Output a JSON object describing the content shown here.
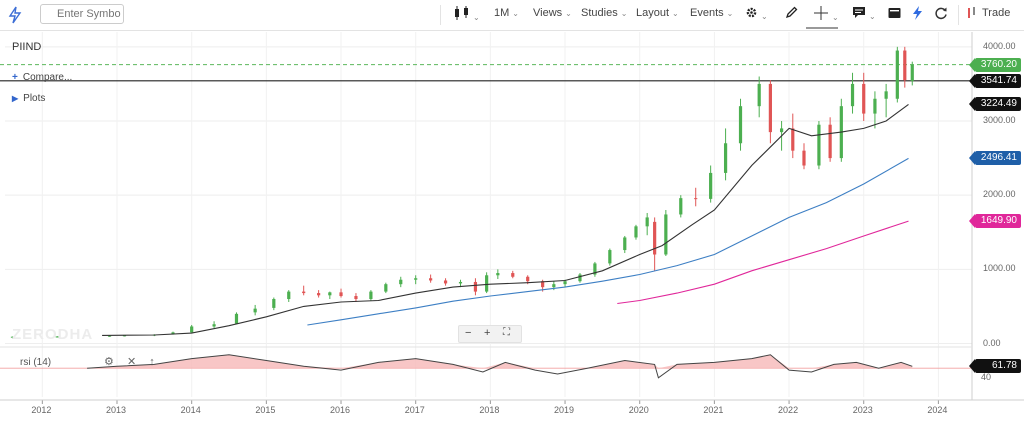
{
  "toolbar": {
    "search_placeholder": "Enter Symbol",
    "interval": "1M",
    "views": "Views",
    "studies": "Studies",
    "layout": "Layout",
    "events": "Events",
    "trade": "Trade"
  },
  "symbol": "PIIND",
  "compare_label": "Compare...",
  "plots_label": "Plots",
  "watermark": "ZERODHA",
  "colors": {
    "up": "#4caf50",
    "down": "#e05555",
    "ema_short": "#333333",
    "ema_mid": "#3d7fc4",
    "ema_long": "#e0279a",
    "rsi": "#444444"
  },
  "chart_data": {
    "type": "candlestick",
    "title": "PIIND",
    "interval": "1M",
    "y_axis": {
      "ticks": [
        0,
        1000,
        2000,
        3000,
        4000
      ],
      "tick_labels": [
        "0.00",
        "1000.00",
        "2000.00",
        "3000.00",
        "4000.00"
      ],
      "range": [
        -20,
        4200
      ]
    },
    "x_axis": {
      "labels": [
        "2012",
        "2013",
        "2014",
        "2015",
        "2016",
        "2017",
        "2018",
        "2019",
        "2020",
        "2021",
        "2022",
        "2023",
        "2024"
      ],
      "range": [
        2011.5,
        2024.45
      ]
    },
    "candles": [
      [
        2011.6,
        85,
        95,
        70,
        92
      ],
      [
        2012.2,
        90,
        100,
        80,
        95
      ],
      [
        2012.9,
        100,
        110,
        90,
        105
      ],
      [
        2013.1,
        105,
        115,
        95,
        110
      ],
      [
        2013.5,
        110,
        125,
        100,
        120
      ],
      [
        2013.75,
        125,
        160,
        120,
        150
      ],
      [
        2014.0,
        150,
        250,
        145,
        230
      ],
      [
        2014.3,
        230,
        300,
        210,
        260
      ],
      [
        2014.6,
        270,
        420,
        260,
        400
      ],
      [
        2014.85,
        420,
        520,
        380,
        470
      ],
      [
        2015.1,
        480,
        620,
        450,
        600
      ],
      [
        2015.3,
        600,
        720,
        560,
        700
      ],
      [
        2015.5,
        700,
        780,
        650,
        680
      ],
      [
        2015.7,
        680,
        720,
        620,
        650
      ],
      [
        2015.85,
        650,
        700,
        600,
        690
      ],
      [
        2016.0,
        690,
        740,
        620,
        640
      ],
      [
        2016.2,
        640,
        680,
        560,
        600
      ],
      [
        2016.4,
        600,
        720,
        580,
        700
      ],
      [
        2016.6,
        700,
        820,
        680,
        800
      ],
      [
        2016.8,
        800,
        900,
        760,
        860
      ],
      [
        2017.0,
        860,
        920,
        800,
        880
      ],
      [
        2017.2,
        880,
        930,
        820,
        850
      ],
      [
        2017.4,
        850,
        880,
        780,
        810
      ],
      [
        2017.6,
        810,
        860,
        760,
        830
      ],
      [
        2017.8,
        830,
        880,
        650,
        700
      ],
      [
        2017.95,
        700,
        960,
        680,
        920
      ],
      [
        2018.1,
        920,
        1000,
        870,
        950
      ],
      [
        2018.3,
        950,
        980,
        880,
        900
      ],
      [
        2018.5,
        900,
        920,
        800,
        840
      ],
      [
        2018.7,
        840,
        860,
        700,
        760
      ],
      [
        2018.85,
        760,
        840,
        720,
        800
      ],
      [
        2019.0,
        800,
        860,
        760,
        840
      ],
      [
        2019.2,
        840,
        950,
        820,
        930
      ],
      [
        2019.4,
        930,
        1100,
        900,
        1080
      ],
      [
        2019.6,
        1080,
        1280,
        1050,
        1260
      ],
      [
        2019.8,
        1260,
        1450,
        1220,
        1430
      ],
      [
        2019.95,
        1430,
        1600,
        1400,
        1580
      ],
      [
        2020.1,
        1580,
        1760,
        1460,
        1700
      ],
      [
        2020.2,
        1640,
        1700,
        980,
        1200
      ],
      [
        2020.35,
        1200,
        1800,
        1180,
        1740
      ],
      [
        2020.55,
        1740,
        2000,
        1700,
        1960
      ],
      [
        2020.75,
        1960,
        2100,
        1850,
        1950
      ],
      [
        2020.95,
        1950,
        2400,
        1900,
        2300
      ],
      [
        2021.15,
        2300,
        2900,
        2200,
        2700
      ],
      [
        2021.35,
        2700,
        3300,
        2600,
        3200
      ],
      [
        2021.6,
        3200,
        3600,
        3050,
        3500
      ],
      [
        2021.75,
        3500,
        3550,
        2700,
        2850
      ],
      [
        2021.9,
        2850,
        3000,
        2600,
        2900
      ],
      [
        2022.05,
        2900,
        3100,
        2500,
        2600
      ],
      [
        2022.2,
        2600,
        2700,
        2350,
        2400
      ],
      [
        2022.4,
        2400,
        3000,
        2350,
        2950
      ],
      [
        2022.55,
        2950,
        3050,
        2450,
        2500
      ],
      [
        2022.7,
        2500,
        3300,
        2450,
        3200
      ],
      [
        2022.85,
        3200,
        3650,
        3100,
        3500
      ],
      [
        2023.0,
        3500,
        3650,
        3000,
        3100
      ],
      [
        2023.15,
        3100,
        3400,
        2900,
        3300
      ],
      [
        2023.3,
        3300,
        3500,
        3050,
        3400
      ],
      [
        2023.45,
        3300,
        4000,
        3250,
        3950
      ],
      [
        2023.55,
        3950,
        4000,
        3450,
        3550
      ],
      [
        2023.65,
        3540,
        3800,
        3480,
        3760
      ]
    ],
    "series": [
      {
        "name": "EMA short",
        "last": 3224.49,
        "points": [
          [
            2012.8,
            110
          ],
          [
            2013.5,
            115
          ],
          [
            2014.0,
            140
          ],
          [
            2014.5,
            240
          ],
          [
            2015.0,
            360
          ],
          [
            2015.5,
            500
          ],
          [
            2016.0,
            560
          ],
          [
            2016.5,
            580
          ],
          [
            2017.0,
            680
          ],
          [
            2017.5,
            760
          ],
          [
            2018.0,
            800
          ],
          [
            2018.5,
            820
          ],
          [
            2019.0,
            850
          ],
          [
            2019.5,
            980
          ],
          [
            2020.0,
            1200
          ],
          [
            2020.3,
            1320
          ],
          [
            2020.7,
            1600
          ],
          [
            2021.0,
            1800
          ],
          [
            2021.5,
            2400
          ],
          [
            2021.8,
            2700
          ],
          [
            2022.0,
            2900
          ],
          [
            2022.3,
            2800
          ],
          [
            2022.7,
            2850
          ],
          [
            2023.0,
            2900
          ],
          [
            2023.3,
            3000
          ],
          [
            2023.6,
            3224
          ]
        ]
      },
      {
        "name": "EMA mid",
        "last": 2496.41,
        "points": [
          [
            2015.55,
            250
          ],
          [
            2016.0,
            320
          ],
          [
            2016.5,
            400
          ],
          [
            2017.0,
            480
          ],
          [
            2017.5,
            570
          ],
          [
            2018.0,
            640
          ],
          [
            2018.5,
            700
          ],
          [
            2019.0,
            760
          ],
          [
            2019.5,
            840
          ],
          [
            2020.0,
            930
          ],
          [
            2020.5,
            1050
          ],
          [
            2021.0,
            1200
          ],
          [
            2021.5,
            1450
          ],
          [
            2022.0,
            1700
          ],
          [
            2022.5,
            1900
          ],
          [
            2023.0,
            2150
          ],
          [
            2023.6,
            2496
          ]
        ]
      },
      {
        "name": "EMA long",
        "last": 1649.9,
        "points": [
          [
            2019.7,
            540
          ],
          [
            2020.0,
            580
          ],
          [
            2020.5,
            680
          ],
          [
            2021.0,
            800
          ],
          [
            2021.5,
            980
          ],
          [
            2022.0,
            1130
          ],
          [
            2022.5,
            1280
          ],
          [
            2023.0,
            1450
          ],
          [
            2023.6,
            1650
          ]
        ]
      }
    ],
    "reference_lines": [
      {
        "name": "last price",
        "value": 3760.2,
        "style": "dashed-green"
      },
      {
        "name": "crosshair",
        "value": 3541.74,
        "style": "solid-black"
      }
    ],
    "price_tags": [
      {
        "label": "3760.20",
        "value": 3760.2
      },
      {
        "label": "3541.74",
        "value": 3541.74
      },
      {
        "label": "3224.49",
        "value": 3224.49
      },
      {
        "label": "2496.41",
        "value": 2496.41
      },
      {
        "label": "1649.90",
        "value": 1649.9
      }
    ],
    "rsi": {
      "label": "rsi (14)",
      "last": "61.78",
      "level_label": "40",
      "points": [
        [
          2012.6,
          60
        ],
        [
          2013.0,
          62
        ],
        [
          2013.5,
          64
        ],
        [
          2014.0,
          70
        ],
        [
          2014.5,
          74
        ],
        [
          2015.0,
          68
        ],
        [
          2015.5,
          62
        ],
        [
          2016.0,
          58
        ],
        [
          2016.5,
          66
        ],
        [
          2017.0,
          70
        ],
        [
          2017.5,
          64
        ],
        [
          2017.9,
          56
        ],
        [
          2018.2,
          66
        ],
        [
          2018.6,
          58
        ],
        [
          2018.9,
          54
        ],
        [
          2019.3,
          60
        ],
        [
          2019.8,
          68
        ],
        [
          2020.2,
          64
        ],
        [
          2020.25,
          50
        ],
        [
          2020.5,
          64
        ],
        [
          2021.0,
          66
        ],
        [
          2021.5,
          70
        ],
        [
          2021.75,
          74
        ],
        [
          2022.0,
          58
        ],
        [
          2022.3,
          56
        ],
        [
          2022.6,
          64
        ],
        [
          2022.9,
          66
        ],
        [
          2023.2,
          60
        ],
        [
          2023.5,
          66
        ],
        [
          2023.65,
          62
        ]
      ]
    }
  }
}
